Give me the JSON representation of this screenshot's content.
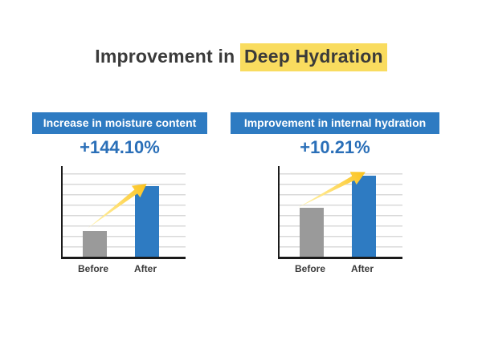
{
  "title": {
    "prefix": "Improvement in ",
    "highlight": "Deep Hydration"
  },
  "panels": [
    {
      "header": "Increase in moisture content",
      "percent": "+144.10%"
    },
    {
      "header": "Improvement in internal hydration",
      "percent": "+10.21%"
    }
  ],
  "colors": {
    "accent_blue": "#2e7bc2",
    "percent_blue": "#2a6fb8",
    "bar_gray": "#9a9a9a",
    "highlight_yellow": "#f9dc5f",
    "arrow_yellow": "#fbc21c",
    "gridline": "#d9d9d9",
    "axis": "#1a1a1a",
    "title_text": "#3a3a3a"
  },
  "chart_data": [
    {
      "type": "bar",
      "title": "Increase in moisture content",
      "annotation": "+144.10%",
      "categories": [
        "Before",
        "After"
      ],
      "values": [
        28,
        78
      ],
      "ylim": [
        0,
        100
      ],
      "xlabel": "",
      "ylabel": "",
      "grid": true,
      "legend": false,
      "bar_colors": [
        "#9a9a9a",
        "#2e7bc2"
      ],
      "arrow": "yellow arrow from Before toward top of After bar"
    },
    {
      "type": "bar",
      "title": "Improvement in internal hydration",
      "annotation": "+10.21%",
      "categories": [
        "Before",
        "After"
      ],
      "values": [
        54,
        89
      ],
      "ylim": [
        0,
        100
      ],
      "xlabel": "",
      "ylabel": "",
      "grid": true,
      "legend": false,
      "bar_colors": [
        "#9a9a9a",
        "#2e7bc2"
      ],
      "arrow": "yellow arrow from top of Before bar toward top of After bar"
    }
  ]
}
